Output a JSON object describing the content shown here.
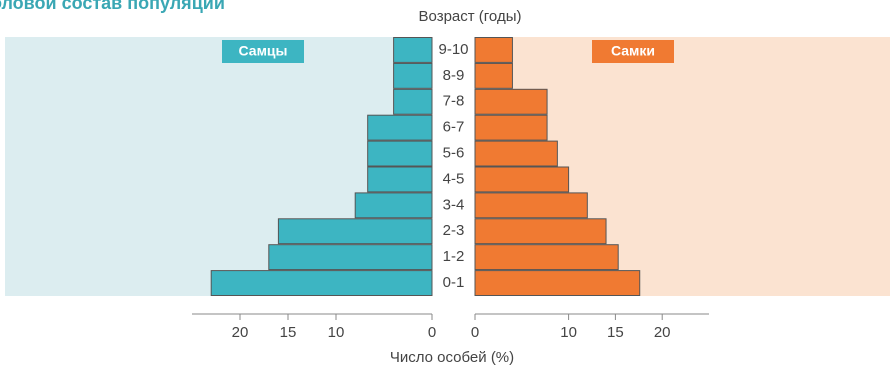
{
  "chart_data": {
    "type": "pyramid",
    "title": "Половой состав популяции",
    "category_axis_label": "Возраст (годы)",
    "x_axis_label": "Число особей (%)",
    "categories": [
      "0-1",
      "1-2",
      "2-3",
      "3-4",
      "4-5",
      "5-6",
      "6-7",
      "7-8",
      "8-9",
      "9-10"
    ],
    "series": [
      {
        "name": "Самцы",
        "color": "#3db5c2",
        "background": "#dcedf0",
        "side": "left",
        "values": [
          23,
          17,
          16,
          8,
          6.7,
          6.7,
          6.7,
          4,
          4,
          4
        ]
      },
      {
        "name": "Самки",
        "color": "#f07a32",
        "background": "#fbe3d1",
        "side": "right",
        "values": [
          17.6,
          15.3,
          14,
          12,
          10,
          8.8,
          7.7,
          7.7,
          4,
          4
        ]
      }
    ],
    "xlim": [
      0,
      25
    ],
    "xticks": [
      0,
      10,
      15,
      20
    ]
  }
}
